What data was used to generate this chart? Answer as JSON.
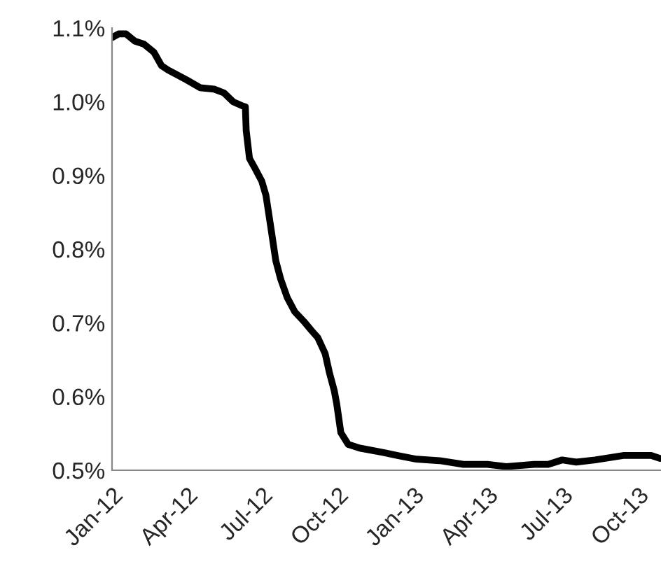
{
  "chart_data": {
    "type": "line",
    "x": [
      "2012-01-01",
      "2012-01-09",
      "2012-01-18",
      "2012-01-29",
      "2012-02-09",
      "2012-02-21",
      "2012-03-01",
      "2012-03-09",
      "2012-03-31",
      "2012-04-17",
      "2012-05-04",
      "2012-05-16",
      "2012-05-27",
      "2012-06-08",
      "2012-06-11",
      "2012-06-12",
      "2012-06-16",
      "2012-06-22",
      "2012-07-01",
      "2012-07-06",
      "2012-07-12",
      "2012-07-18",
      "2012-07-24",
      "2012-08-01",
      "2012-08-10",
      "2012-08-21",
      "2012-08-30",
      "2012-09-07",
      "2012-09-16",
      "2012-09-21",
      "2012-09-27",
      "2012-09-30",
      "2012-10-05",
      "2012-10-14",
      "2012-10-28",
      "2012-11-26",
      "2012-12-13",
      "2013-01-05",
      "2013-02-02",
      "2013-03-03",
      "2013-04-01",
      "2013-04-24",
      "2013-05-28",
      "2013-06-14",
      "2013-07-01",
      "2013-07-18",
      "2013-08-10",
      "2013-09-13",
      "2013-10-17",
      "2013-10-28"
    ],
    "series": [
      {
        "color": "#000000",
        "values": [
          1.087,
          1.092,
          1.092,
          1.082,
          1.078,
          1.067,
          1.049,
          1.043,
          1.03,
          1.019,
          1.017,
          1.012,
          1.0,
          0.994,
          0.993,
          0.961,
          0.923,
          0.911,
          0.892,
          0.873,
          0.829,
          0.784,
          0.759,
          0.734,
          0.715,
          0.702,
          0.69,
          0.68,
          0.658,
          0.633,
          0.608,
          0.59,
          0.551,
          0.535,
          0.53,
          0.524,
          0.52,
          0.515,
          0.513,
          0.508,
          0.508,
          0.505,
          0.508,
          0.508,
          0.514,
          0.511,
          0.514,
          0.52,
          0.52,
          0.516
        ]
      }
    ],
    "xlim": [
      "2012-01-01",
      "2013-10-29"
    ],
    "xticks": [
      {
        "value": "2012-01-01",
        "label": "Jan-12"
      },
      {
        "value": "2012-04-01",
        "label": "Apr-12"
      },
      {
        "value": "2012-07-01",
        "label": "Jul-12"
      },
      {
        "value": "2012-10-01",
        "label": "Oct-12"
      },
      {
        "value": "2013-01-01",
        "label": "Jan-13"
      },
      {
        "value": "2013-04-01",
        "label": "Apr-13"
      },
      {
        "value": "2013-07-01",
        "label": "Jul-13"
      },
      {
        "value": "2013-10-01",
        "label": "Oct-13"
      }
    ],
    "ylim": [
      0.5,
      1.1
    ],
    "yticks": [
      {
        "value": 0.5,
        "label": "0.5%"
      },
      {
        "value": 0.6,
        "label": "0.6%"
      },
      {
        "value": 0.7,
        "label": "0.7%"
      },
      {
        "value": 0.8,
        "label": "0.8%"
      },
      {
        "value": 0.9,
        "label": "0.9%"
      },
      {
        "value": 1.0,
        "label": "1.0%"
      },
      {
        "value": 1.1,
        "label": "1.1%"
      }
    ],
    "grid": false,
    "legend": false,
    "marker": "none",
    "line_style": "solid"
  }
}
